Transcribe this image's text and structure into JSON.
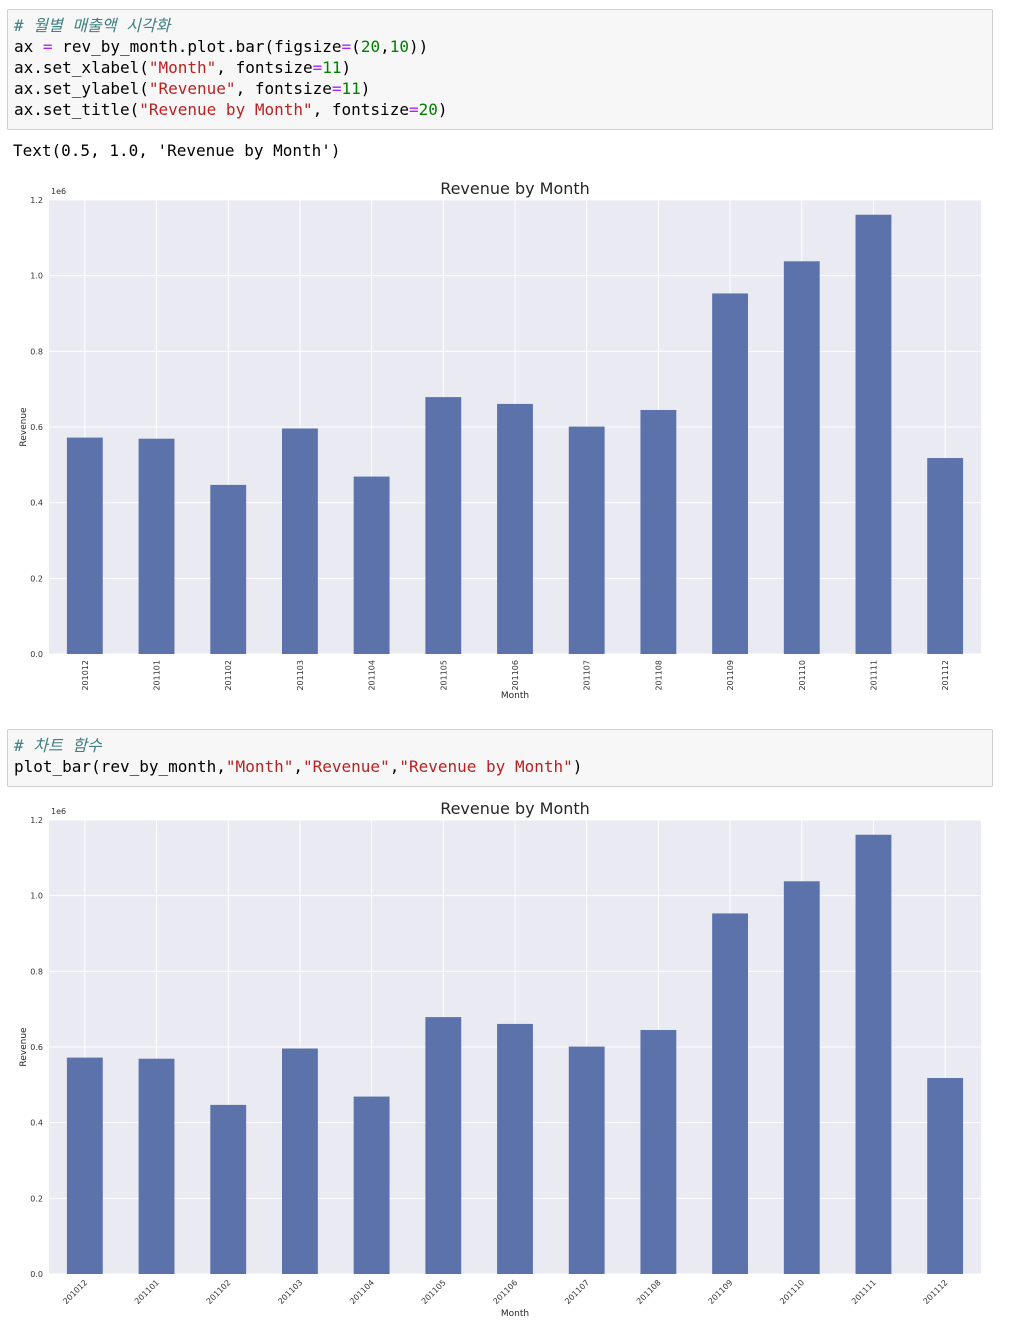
{
  "cells": [
    {
      "comment": "# 월별 매출액 시각화",
      "lines": [
        [
          "ax ",
          "=",
          " rev_by_month.plot.bar(figsize",
          "=",
          "(",
          "20",
          ",",
          "10",
          "))"
        ],
        [
          "ax.set_xlabel(",
          "\"Month\"",
          ", fontsize",
          "=",
          "11",
          ")"
        ],
        [
          "ax.set_ylabel(",
          "\"Revenue\"",
          ", fontsize",
          "=",
          "11",
          ")"
        ],
        [
          "ax.set_title(",
          "\"Revenue by Month\"",
          ", fontsize",
          "=",
          "20",
          ")"
        ]
      ],
      "output_text": "Text(0.5, 1.0, 'Revenue by Month')"
    },
    {
      "comment": "# 차트 함수",
      "call_prefix": "plot_bar(rev_by_month,",
      "arg1": "\"Month\"",
      "arg2": "\"Revenue\"",
      "arg3": "\"Revenue by Month\"",
      "call_suffix": ")"
    }
  ],
  "chart_data": [
    {
      "type": "bar",
      "title": "Revenue by Month",
      "xlabel": "Month",
      "ylabel": "Revenue",
      "y_offset_label": "1e6",
      "categories": [
        "201012",
        "201101",
        "201102",
        "201103",
        "201104",
        "201105",
        "201106",
        "201107",
        "201108",
        "201109",
        "201110",
        "201111",
        "201112"
      ],
      "values": [
        572000,
        569000,
        447000,
        596000,
        469000,
        679000,
        661000,
        601000,
        645000,
        953000,
        1038000,
        1161000,
        518000
      ],
      "ylim": [
        0,
        1200000
      ],
      "yticks": [
        0,
        200000,
        400000,
        600000,
        800000,
        1000000,
        1200000
      ],
      "ytick_labels": [
        "0.0",
        "0.2",
        "0.4",
        "0.6",
        "0.8",
        "1.0",
        "1.2"
      ],
      "tick_rotation": 90,
      "grid": true,
      "bar_color": "#5b72aa",
      "background": "#eaeaf2"
    },
    {
      "type": "bar",
      "title": "Revenue by Month",
      "xlabel": "Month",
      "ylabel": "Revenue",
      "y_offset_label": "1e6",
      "categories": [
        "201012",
        "201101",
        "201102",
        "201103",
        "201104",
        "201105",
        "201106",
        "201107",
        "201108",
        "201109",
        "201110",
        "201111",
        "201112"
      ],
      "values": [
        572000,
        569000,
        447000,
        596000,
        469000,
        679000,
        661000,
        601000,
        645000,
        953000,
        1038000,
        1161000,
        518000
      ],
      "ylim": [
        0,
        1200000
      ],
      "yticks": [
        0,
        200000,
        400000,
        600000,
        800000,
        1000000,
        1200000
      ],
      "ytick_labels": [
        "0.0",
        "0.2",
        "0.4",
        "0.6",
        "0.8",
        "1.0",
        "1.2"
      ],
      "tick_rotation": 45,
      "grid": true,
      "bar_color": "#5b72aa",
      "background": "#eaeaf2"
    }
  ]
}
